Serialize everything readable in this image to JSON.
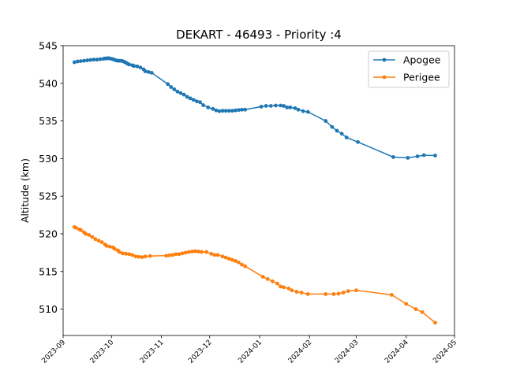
{
  "chart_data": {
    "type": "line",
    "title": "DEKART - 46493 - Priority :4",
    "xlabel": "",
    "ylabel": "Altitude (km)",
    "xlim": [
      "2023-09-01",
      "2024-05-01"
    ],
    "ylim": [
      506.5,
      545
    ],
    "yticks": [
      510,
      515,
      520,
      525,
      530,
      535,
      540,
      545
    ],
    "xticks": [
      "2023-09",
      "2023-10",
      "2023-11",
      "2023-12",
      "2024-01",
      "2024-02",
      "2024-03",
      "2024-04",
      "2024-05"
    ],
    "grid": false,
    "legend": "top-right",
    "series": [
      {
        "name": "Apogee",
        "color": "#1f77b4",
        "points": [
          [
            "2023-09-08",
            542.8
          ],
          [
            "2023-09-10",
            542.9
          ],
          [
            "2023-09-12",
            542.95
          ],
          [
            "2023-09-14",
            543.0
          ],
          [
            "2023-09-16",
            543.05
          ],
          [
            "2023-09-18",
            543.1
          ],
          [
            "2023-09-20",
            543.15
          ],
          [
            "2023-09-22",
            543.15
          ],
          [
            "2023-09-24",
            543.2
          ],
          [
            "2023-09-26",
            543.25
          ],
          [
            "2023-09-27",
            543.3
          ],
          [
            "2023-09-28",
            543.3
          ],
          [
            "2023-09-29",
            543.35
          ],
          [
            "2023-09-30",
            543.3
          ],
          [
            "2023-10-01",
            543.25
          ],
          [
            "2023-10-02",
            543.2
          ],
          [
            "2023-10-03",
            543.1
          ],
          [
            "2023-10-04",
            543.05
          ],
          [
            "2023-10-05",
            543.0
          ],
          [
            "2023-10-06",
            543.0
          ],
          [
            "2023-10-07",
            543.0
          ],
          [
            "2023-10-08",
            542.95
          ],
          [
            "2023-10-09",
            542.85
          ],
          [
            "2023-10-10",
            542.75
          ],
          [
            "2023-10-11",
            542.6
          ],
          [
            "2023-10-12",
            542.5
          ],
          [
            "2023-10-14",
            542.4
          ],
          [
            "2023-10-15",
            542.3
          ],
          [
            "2023-10-17",
            542.25
          ],
          [
            "2023-10-19",
            542.1
          ],
          [
            "2023-10-21",
            541.85
          ],
          [
            "2023-10-22",
            541.6
          ],
          [
            "2023-10-24",
            541.5
          ],
          [
            "2023-10-26",
            541.4
          ],
          [
            "2023-11-05",
            539.9
          ],
          [
            "2023-11-07",
            539.5
          ],
          [
            "2023-11-09",
            539.2
          ],
          [
            "2023-11-11",
            538.9
          ],
          [
            "2023-11-13",
            538.7
          ],
          [
            "2023-11-15",
            538.5
          ],
          [
            "2023-11-17",
            538.2
          ],
          [
            "2023-11-19",
            538.0
          ],
          [
            "2023-11-21",
            537.8
          ],
          [
            "2023-11-23",
            537.6
          ],
          [
            "2023-11-25",
            537.5
          ],
          [
            "2023-11-27",
            537.1
          ],
          [
            "2023-11-30",
            536.8
          ],
          [
            "2023-12-03",
            536.6
          ],
          [
            "2023-12-05",
            536.4
          ],
          [
            "2023-12-07",
            536.3
          ],
          [
            "2023-12-09",
            536.35
          ],
          [
            "2023-12-11",
            536.35
          ],
          [
            "2023-12-13",
            536.35
          ],
          [
            "2023-12-15",
            536.35
          ],
          [
            "2023-12-17",
            536.4
          ],
          [
            "2023-12-19",
            536.45
          ],
          [
            "2023-12-21",
            536.5
          ],
          [
            "2023-12-23",
            536.5
          ],
          [
            "2024-01-02",
            536.9
          ],
          [
            "2024-01-05",
            537.0
          ],
          [
            "2024-01-08",
            537.0
          ],
          [
            "2024-01-11",
            537.05
          ],
          [
            "2024-01-14",
            537.05
          ],
          [
            "2024-01-16",
            537.0
          ],
          [
            "2024-01-18",
            536.8
          ],
          [
            "2024-01-20",
            536.8
          ],
          [
            "2024-01-23",
            536.7
          ],
          [
            "2024-01-25",
            536.5
          ],
          [
            "2024-01-28",
            536.3
          ],
          [
            "2024-01-31",
            536.2
          ],
          [
            "2024-02-11",
            535.0
          ],
          [
            "2024-02-15",
            534.2
          ],
          [
            "2024-02-18",
            533.7
          ],
          [
            "2024-02-21",
            533.3
          ],
          [
            "2024-02-24",
            532.8
          ],
          [
            "2024-03-02",
            532.2
          ],
          [
            "2024-03-24",
            530.2
          ],
          [
            "2024-04-02",
            530.1
          ],
          [
            "2024-04-08",
            530.3
          ],
          [
            "2024-04-12",
            530.45
          ],
          [
            "2024-04-19",
            530.4
          ]
        ]
      },
      {
        "name": "Perigee",
        "color": "#ff7f0e",
        "points": [
          [
            "2023-09-08",
            520.9
          ],
          [
            "2023-09-09",
            520.8
          ],
          [
            "2023-09-11",
            520.6
          ],
          [
            "2023-09-12",
            520.5
          ],
          [
            "2023-09-14",
            520.2
          ],
          [
            "2023-09-15",
            520.0
          ],
          [
            "2023-09-17",
            519.85
          ],
          [
            "2023-09-19",
            519.6
          ],
          [
            "2023-09-21",
            519.3
          ],
          [
            "2023-09-23",
            519.1
          ],
          [
            "2023-09-25",
            518.9
          ],
          [
            "2023-09-27",
            518.6
          ],
          [
            "2023-09-28",
            518.4
          ],
          [
            "2023-09-30",
            518.3
          ],
          [
            "2023-10-02",
            518.2
          ],
          [
            "2023-10-03",
            518.0
          ],
          [
            "2023-10-05",
            517.8
          ],
          [
            "2023-10-06",
            517.6
          ],
          [
            "2023-10-08",
            517.4
          ],
          [
            "2023-10-10",
            517.35
          ],
          [
            "2023-10-12",
            517.3
          ],
          [
            "2023-10-14",
            517.2
          ],
          [
            "2023-10-16",
            517.0
          ],
          [
            "2023-10-18",
            516.95
          ],
          [
            "2023-10-20",
            516.9
          ],
          [
            "2023-10-22",
            517.0
          ],
          [
            "2023-10-25",
            517.05
          ],
          [
            "2023-11-04",
            517.1
          ],
          [
            "2023-11-06",
            517.15
          ],
          [
            "2023-11-08",
            517.2
          ],
          [
            "2023-11-10",
            517.3
          ],
          [
            "2023-11-12",
            517.3
          ],
          [
            "2023-11-14",
            517.4
          ],
          [
            "2023-11-16",
            517.5
          ],
          [
            "2023-11-18",
            517.6
          ],
          [
            "2023-11-20",
            517.65
          ],
          [
            "2023-11-22",
            517.7
          ],
          [
            "2023-11-24",
            517.65
          ],
          [
            "2023-11-26",
            517.6
          ],
          [
            "2023-11-29",
            517.6
          ],
          [
            "2023-12-02",
            517.35
          ],
          [
            "2023-12-04",
            517.2
          ],
          [
            "2023-12-06",
            517.2
          ],
          [
            "2023-12-09",
            517.0
          ],
          [
            "2023-12-11",
            516.85
          ],
          [
            "2023-12-13",
            516.7
          ],
          [
            "2023-12-15",
            516.55
          ],
          [
            "2023-12-17",
            516.4
          ],
          [
            "2023-12-19",
            516.2
          ],
          [
            "2023-12-21",
            515.9
          ],
          [
            "2023-12-23",
            515.7
          ],
          [
            "2024-01-03",
            514.3
          ],
          [
            "2024-01-06",
            514.0
          ],
          [
            "2024-01-09",
            513.7
          ],
          [
            "2024-01-12",
            513.4
          ],
          [
            "2024-01-14",
            513.0
          ],
          [
            "2024-01-16",
            512.9
          ],
          [
            "2024-01-19",
            512.75
          ],
          [
            "2024-01-21",
            512.5
          ],
          [
            "2024-01-24",
            512.3
          ],
          [
            "2024-01-27",
            512.2
          ],
          [
            "2024-01-31",
            512.0
          ],
          [
            "2024-02-11",
            512.0
          ],
          [
            "2024-02-16",
            512.0
          ],
          [
            "2024-02-19",
            512.05
          ],
          [
            "2024-02-22",
            512.2
          ],
          [
            "2024-02-25",
            512.4
          ],
          [
            "2024-03-01",
            512.5
          ],
          [
            "2024-03-23",
            511.9
          ],
          [
            "2024-04-01",
            510.7
          ],
          [
            "2024-04-07",
            510.0
          ],
          [
            "2024-04-11",
            509.6
          ],
          [
            "2024-04-19",
            508.2
          ]
        ]
      }
    ]
  }
}
